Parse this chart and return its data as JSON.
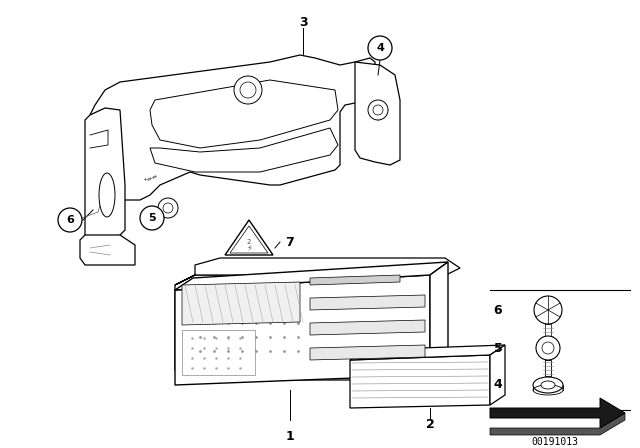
{
  "bg_color": "#ffffff",
  "line_color": "#000000",
  "lw": 0.8,
  "watermark": "00191013",
  "fig_w": 6.4,
  "fig_h": 4.48,
  "dpi": 100
}
